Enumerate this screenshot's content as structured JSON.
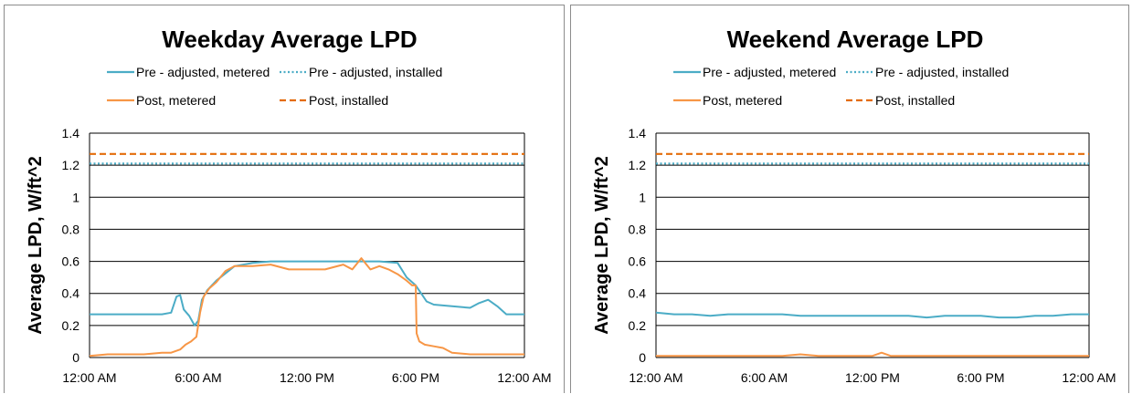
{
  "colors": {
    "pre_metered": "#4bacc6",
    "pre_installed": "#4bacc6",
    "post_metered": "#f79646",
    "post_installed": "#e46c0a",
    "grid": "#000000"
  },
  "chart_data": [
    {
      "type": "line",
      "title": "Weekday Average LPD",
      "xlabel": "",
      "ylabel": "Average LPD, W/ft^2",
      "ylim": [
        0,
        1.4
      ],
      "yticks": [
        "0",
        "0.2",
        "0.4",
        "0.6",
        "0.8",
        "1",
        "1.2",
        "1.4"
      ],
      "xlim": [
        0,
        24
      ],
      "xticks": [
        "12:00 AM",
        "6:00 AM",
        "12:00 PM",
        "6:00 PM",
        "12:00 AM"
      ],
      "grid": "horizontal",
      "legend_placement": "top",
      "series": [
        {
          "name": "Pre - adjusted, metered",
          "style": "solid",
          "x": [
            0,
            1,
            2,
            3,
            4,
            4.5,
            4.8,
            5.0,
            5.2,
            5.5,
            5.8,
            6.0,
            6.2,
            6.5,
            7,
            8,
            9,
            10,
            11,
            12,
            13,
            14,
            15,
            16,
            17,
            17.5,
            18,
            18.3,
            18.6,
            19,
            20,
            21,
            21.5,
            22,
            22.5,
            23,
            24
          ],
          "y": [
            0.27,
            0.27,
            0.27,
            0.27,
            0.27,
            0.28,
            0.38,
            0.39,
            0.3,
            0.26,
            0.2,
            0.23,
            0.36,
            0.42,
            0.48,
            0.57,
            0.59,
            0.6,
            0.6,
            0.6,
            0.6,
            0.6,
            0.6,
            0.6,
            0.59,
            0.5,
            0.45,
            0.4,
            0.35,
            0.33,
            0.32,
            0.31,
            0.34,
            0.36,
            0.32,
            0.27,
            0.27
          ]
        },
        {
          "name": "Pre - adjusted, installed",
          "style": "dotted",
          "x": [
            0,
            24
          ],
          "y": [
            1.21,
            1.21
          ]
        },
        {
          "name": "Post, metered",
          "style": "solid",
          "x": [
            0,
            1,
            2,
            3,
            4,
            4.5,
            5.0,
            5.3,
            5.6,
            5.9,
            6.1,
            6.3,
            6.6,
            7,
            7.5,
            8,
            9,
            10,
            11,
            12,
            13,
            14,
            14.5,
            15,
            15.5,
            16,
            16.5,
            17,
            17.5,
            17.8,
            18.0,
            18.05,
            18.2,
            18.5,
            19,
            19.5,
            20,
            21,
            22,
            23,
            24
          ],
          "y": [
            0.01,
            0.02,
            0.02,
            0.02,
            0.03,
            0.03,
            0.05,
            0.08,
            0.1,
            0.13,
            0.28,
            0.38,
            0.43,
            0.47,
            0.54,
            0.57,
            0.57,
            0.58,
            0.55,
            0.55,
            0.55,
            0.58,
            0.55,
            0.62,
            0.55,
            0.57,
            0.55,
            0.52,
            0.48,
            0.45,
            0.45,
            0.15,
            0.1,
            0.08,
            0.07,
            0.06,
            0.03,
            0.02,
            0.02,
            0.02,
            0.02
          ]
        },
        {
          "name": "Post, installed",
          "style": "dashed",
          "x": [
            0,
            24
          ],
          "y": [
            1.27,
            1.27
          ]
        }
      ]
    },
    {
      "type": "line",
      "title": "Weekend Average LPD",
      "xlabel": "",
      "ylabel": "Average LPD, W/ft^2",
      "ylim": [
        0,
        1.4
      ],
      "yticks": [
        "0",
        "0.2",
        "0.4",
        "0.6",
        "0.8",
        "1",
        "1.2",
        "1.4"
      ],
      "xlim": [
        0,
        24
      ],
      "xticks": [
        "12:00 AM",
        "6:00 AM",
        "12:00 PM",
        "6:00 PM",
        "12:00 AM"
      ],
      "grid": "horizontal",
      "legend_placement": "top",
      "series": [
        {
          "name": "Pre - adjusted, metered",
          "style": "solid",
          "x": [
            0,
            1,
            2,
            3,
            4,
            5,
            6,
            7,
            8,
            9,
            10,
            11,
            12,
            13,
            14,
            15,
            16,
            17,
            18,
            19,
            20,
            21,
            22,
            23,
            24
          ],
          "y": [
            0.28,
            0.27,
            0.27,
            0.26,
            0.27,
            0.27,
            0.27,
            0.27,
            0.26,
            0.26,
            0.26,
            0.26,
            0.26,
            0.26,
            0.26,
            0.25,
            0.26,
            0.26,
            0.26,
            0.25,
            0.25,
            0.26,
            0.26,
            0.27,
            0.27
          ]
        },
        {
          "name": "Pre - adjusted, installed",
          "style": "dotted",
          "x": [
            0,
            24
          ],
          "y": [
            1.21,
            1.21
          ]
        },
        {
          "name": "Post, metered",
          "style": "solid",
          "x": [
            0,
            1,
            2,
            3,
            4,
            5,
            6,
            7,
            8,
            9,
            10,
            11,
            12,
            12.5,
            13,
            14,
            15,
            16,
            17,
            18,
            19,
            20,
            21,
            22,
            23,
            24
          ],
          "y": [
            0.01,
            0.01,
            0.01,
            0.01,
            0.01,
            0.01,
            0.01,
            0.01,
            0.02,
            0.01,
            0.01,
            0.01,
            0.01,
            0.03,
            0.01,
            0.01,
            0.01,
            0.01,
            0.01,
            0.01,
            0.01,
            0.01,
            0.01,
            0.01,
            0.01,
            0.01
          ]
        },
        {
          "name": "Post, installed",
          "style": "dashed",
          "x": [
            0,
            24
          ],
          "y": [
            1.27,
            1.27
          ]
        }
      ]
    }
  ]
}
